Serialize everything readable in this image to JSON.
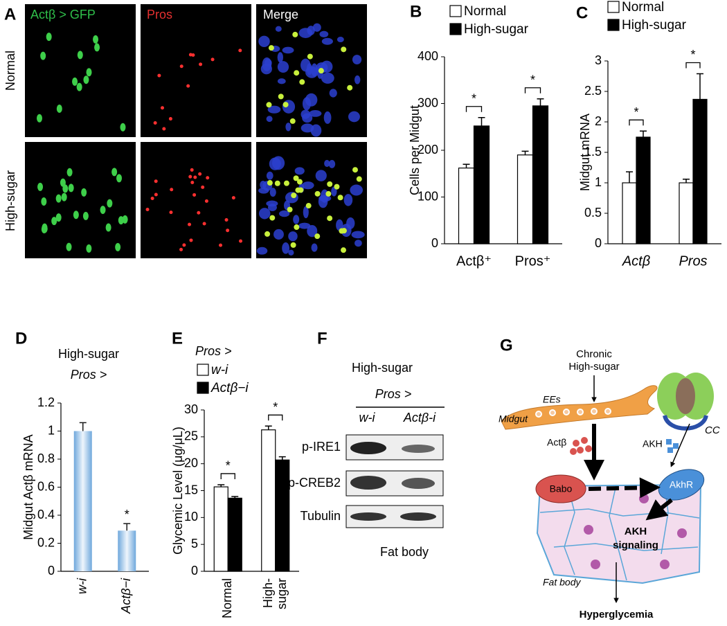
{
  "panel_labels": [
    "A",
    "B",
    "C",
    "D",
    "E",
    "F",
    "G"
  ],
  "panel_a": {
    "columns": [
      "Actβ > GFP",
      "Pros",
      "Merge"
    ],
    "rows": [
      "Normal",
      "High-sugar"
    ]
  },
  "chart_data": [
    {
      "type": "bar",
      "ylabel": "Cells per Midgut",
      "categories": [
        "Actβ⁺",
        "Pros⁺"
      ],
      "series": [
        {
          "name": "Normal",
          "color": "#ffffff",
          "values": [
            162,
            190
          ],
          "errors": [
            8,
            8
          ]
        },
        {
          "name": "High-sugar",
          "color": "#000000",
          "values": [
            252,
            295
          ],
          "errors": [
            18,
            15
          ]
        }
      ],
      "ylim": [
        0,
        400
      ],
      "yticks": [
        0,
        100,
        200,
        300,
        400
      ],
      "significance": [
        "*",
        "*"
      ],
      "brackets": true,
      "legend": "top"
    },
    {
      "type": "bar",
      "ylabel": "Midgut mRNA",
      "categories": [
        "Actβ",
        "Pros"
      ],
      "series": [
        {
          "name": "Normal",
          "color": "#ffffff",
          "values": [
            1,
            1
          ],
          "errors": [
            0.18,
            0.06
          ]
        },
        {
          "name": "High-sugar",
          "color": "#000000",
          "values": [
            1.75,
            2.37
          ],
          "errors": [
            0.1,
            0.42
          ]
        }
      ],
      "ylim": [
        0,
        3
      ],
      "yticks": [
        0,
        0.5,
        1,
        1.5,
        2,
        2.5,
        3
      ],
      "significance": [
        "*",
        "*"
      ],
      "brackets": true,
      "legend": "top"
    },
    {
      "type": "bar",
      "title": "High-sugar",
      "subtitle": "Pros >",
      "ylabel": "Midgut Actβ mRNA",
      "categories": [
        "w-i",
        "Actβ−i"
      ],
      "series": [
        {
          "color": "#6fa8dc",
          "values": [
            1,
            0.29
          ],
          "errors": [
            0.06,
            0.05
          ]
        }
      ],
      "ylim": [
        0,
        1.2
      ],
      "yticks": [
        0,
        0.2,
        0.4,
        0.6,
        0.8,
        1,
        1.2
      ],
      "significance": [
        null,
        "*"
      ],
      "brackets": false,
      "gradient": true,
      "category_rotation": -90
    },
    {
      "type": "bar",
      "title": "Pros >",
      "ylabel": "Glycemic Level (μg/μL)",
      "categories": [
        "Normal",
        "High- sugar"
      ],
      "series": [
        {
          "name": "w-i",
          "color": "#ffffff",
          "values": [
            15.7,
            26.3
          ],
          "errors": [
            0.4,
            0.7
          ]
        },
        {
          "name": "Actβ−i",
          "color": "#000000",
          "values": [
            13.6,
            20.7
          ],
          "errors": [
            0.3,
            0.6
          ]
        }
      ],
      "ylim": [
        0,
        30
      ],
      "yticks": [
        0,
        5,
        10,
        15,
        20,
        25,
        30
      ],
      "significance": [
        "*",
        "*"
      ],
      "brackets": true,
      "legend": "top",
      "category_rotation": -90
    }
  ],
  "panel_f": {
    "title": "High-sugar",
    "genotype": "Pros >",
    "lanes": [
      "w-i",
      "Actβ-i"
    ],
    "rows": [
      "p-IRE1",
      "p-CREB2",
      "Tubulin"
    ],
    "tissue": "Fat body"
  },
  "panel_g": {
    "input": [
      "Chronic",
      "High-sugar"
    ],
    "cells": "EEs",
    "organ": "Midgut",
    "gland": "CC",
    "ligand": "Actβ",
    "hormone": "AKH",
    "receptor_1": "Babo",
    "receptor_2": "AkhR",
    "pathway": [
      "AKH",
      "signaling"
    ],
    "tissue": "Fat body",
    "outcome": "Hyperglycemia"
  }
}
